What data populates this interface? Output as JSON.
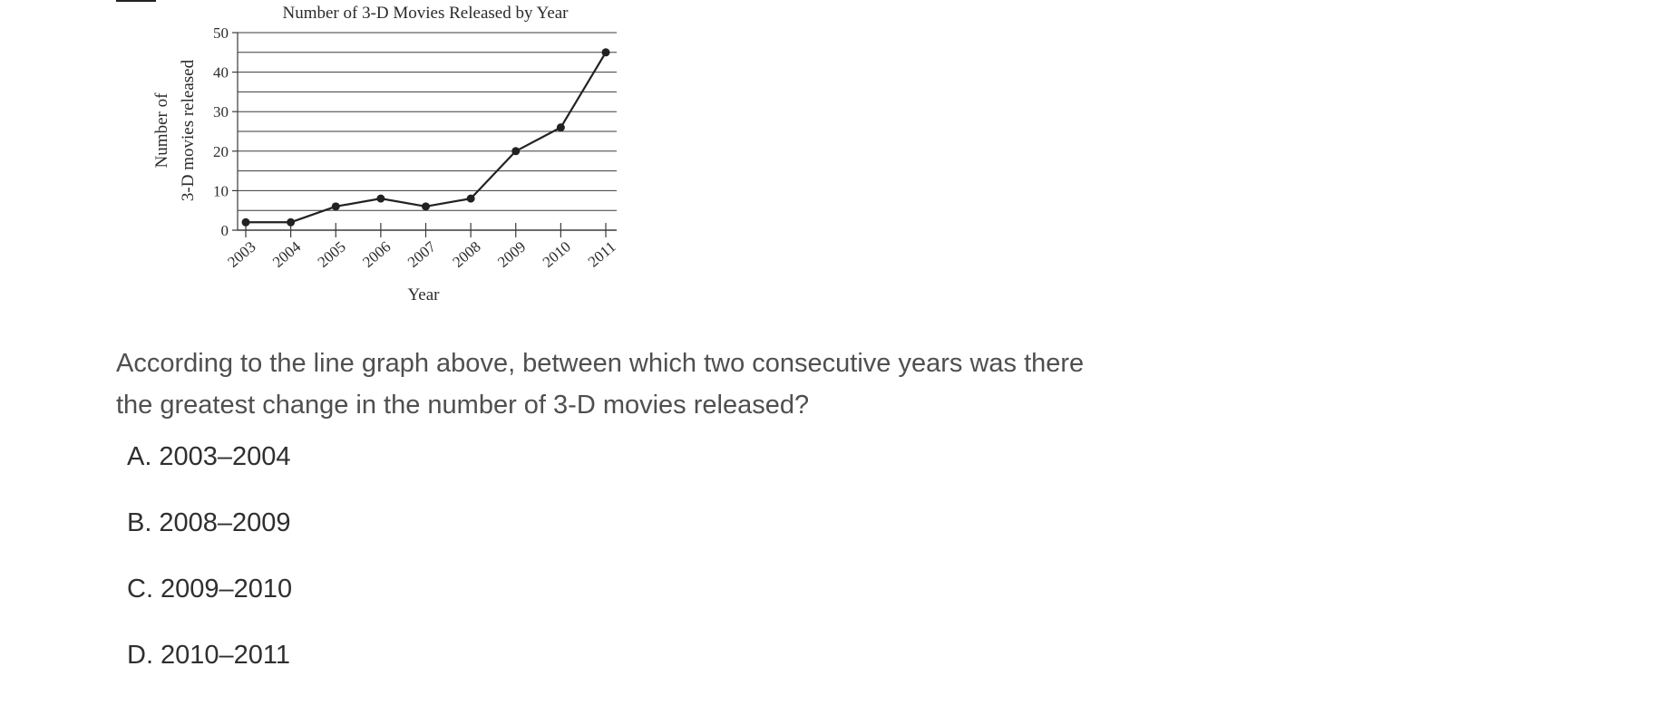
{
  "question": {
    "text": "According to the line graph above, between which two consecutive years was there the greatest change in the number of 3-D movies released?"
  },
  "choices": [
    {
      "letter": "A.",
      "text": "2003–2004"
    },
    {
      "letter": "B.",
      "text": "2008–2009"
    },
    {
      "letter": "C.",
      "text": "2009–2010"
    },
    {
      "letter": "D.",
      "text": "2010–2011"
    }
  ],
  "chart_data": {
    "type": "line",
    "title": "Number of 3-D Movies Released by Year",
    "xlabel": "Year",
    "ylabel_line1": "Number of",
    "ylabel_line2": "3-D movies released",
    "categories": [
      "2003",
      "2004",
      "2005",
      "2006",
      "2007",
      "2008",
      "2009",
      "2010",
      "2011"
    ],
    "values": [
      2,
      2,
      6,
      8,
      6,
      8,
      20,
      26,
      45
    ],
    "ylim": [
      0,
      50
    ],
    "yticks": [
      "0",
      "10",
      "20",
      "30",
      "40",
      "50"
    ],
    "ytick_values": [
      0,
      10,
      20,
      30,
      40,
      50
    ],
    "grid": true,
    "grid_step": 5,
    "line_color": "#222222"
  }
}
